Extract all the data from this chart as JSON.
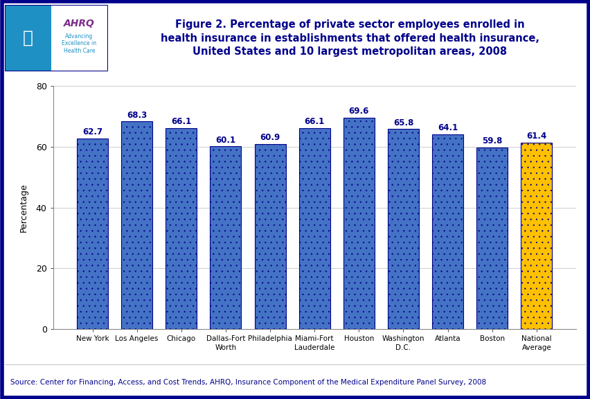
{
  "categories": [
    "New York",
    "Los Angeles",
    "Chicago",
    "Dallas-Fort\nWorth",
    "Philadelphia",
    "Miami-Fort\nLauderdale",
    "Houston",
    "Washington\nD.C.",
    "Atlanta",
    "Boston",
    "National\nAverage"
  ],
  "values": [
    62.7,
    68.3,
    66.1,
    60.1,
    60.9,
    66.1,
    69.6,
    65.8,
    64.1,
    59.8,
    61.4
  ],
  "bar_colors": [
    "#4472C4",
    "#4472C4",
    "#4472C4",
    "#4472C4",
    "#4472C4",
    "#4472C4",
    "#4472C4",
    "#4472C4",
    "#4472C4",
    "#4472C4",
    "#FFC000"
  ],
  "title_line1": "Figure 2. Percentage of private sector employees enrolled in",
  "title_line2": "health insurance in establishments that offered health insurance,",
  "title_line3": "United States and 10 largest metropolitan areas, 2008",
  "ylabel": "Percentage",
  "ylim": [
    0,
    80
  ],
  "yticks": [
    0,
    20,
    40,
    60,
    80
  ],
  "source_text": "Source: Center for Financing, Access, and Cost Trends, AHRQ, Insurance Component of the Medical Expenditure Panel Survey, 2008",
  "title_color": "#00008B",
  "axis_color": "#333333",
  "bar_edge_color": "#00008B",
  "background_color": "#FFFFFF",
  "outer_border_color": "#00008B",
  "value_label_fontsize": 8.5,
  "axis_label_fontsize": 9,
  "tick_label_fontsize": 7.5,
  "source_fontsize": 7.5,
  "title_fontsize": 10.5,
  "hatch": "..",
  "hatch_color": "#FFFFFF"
}
